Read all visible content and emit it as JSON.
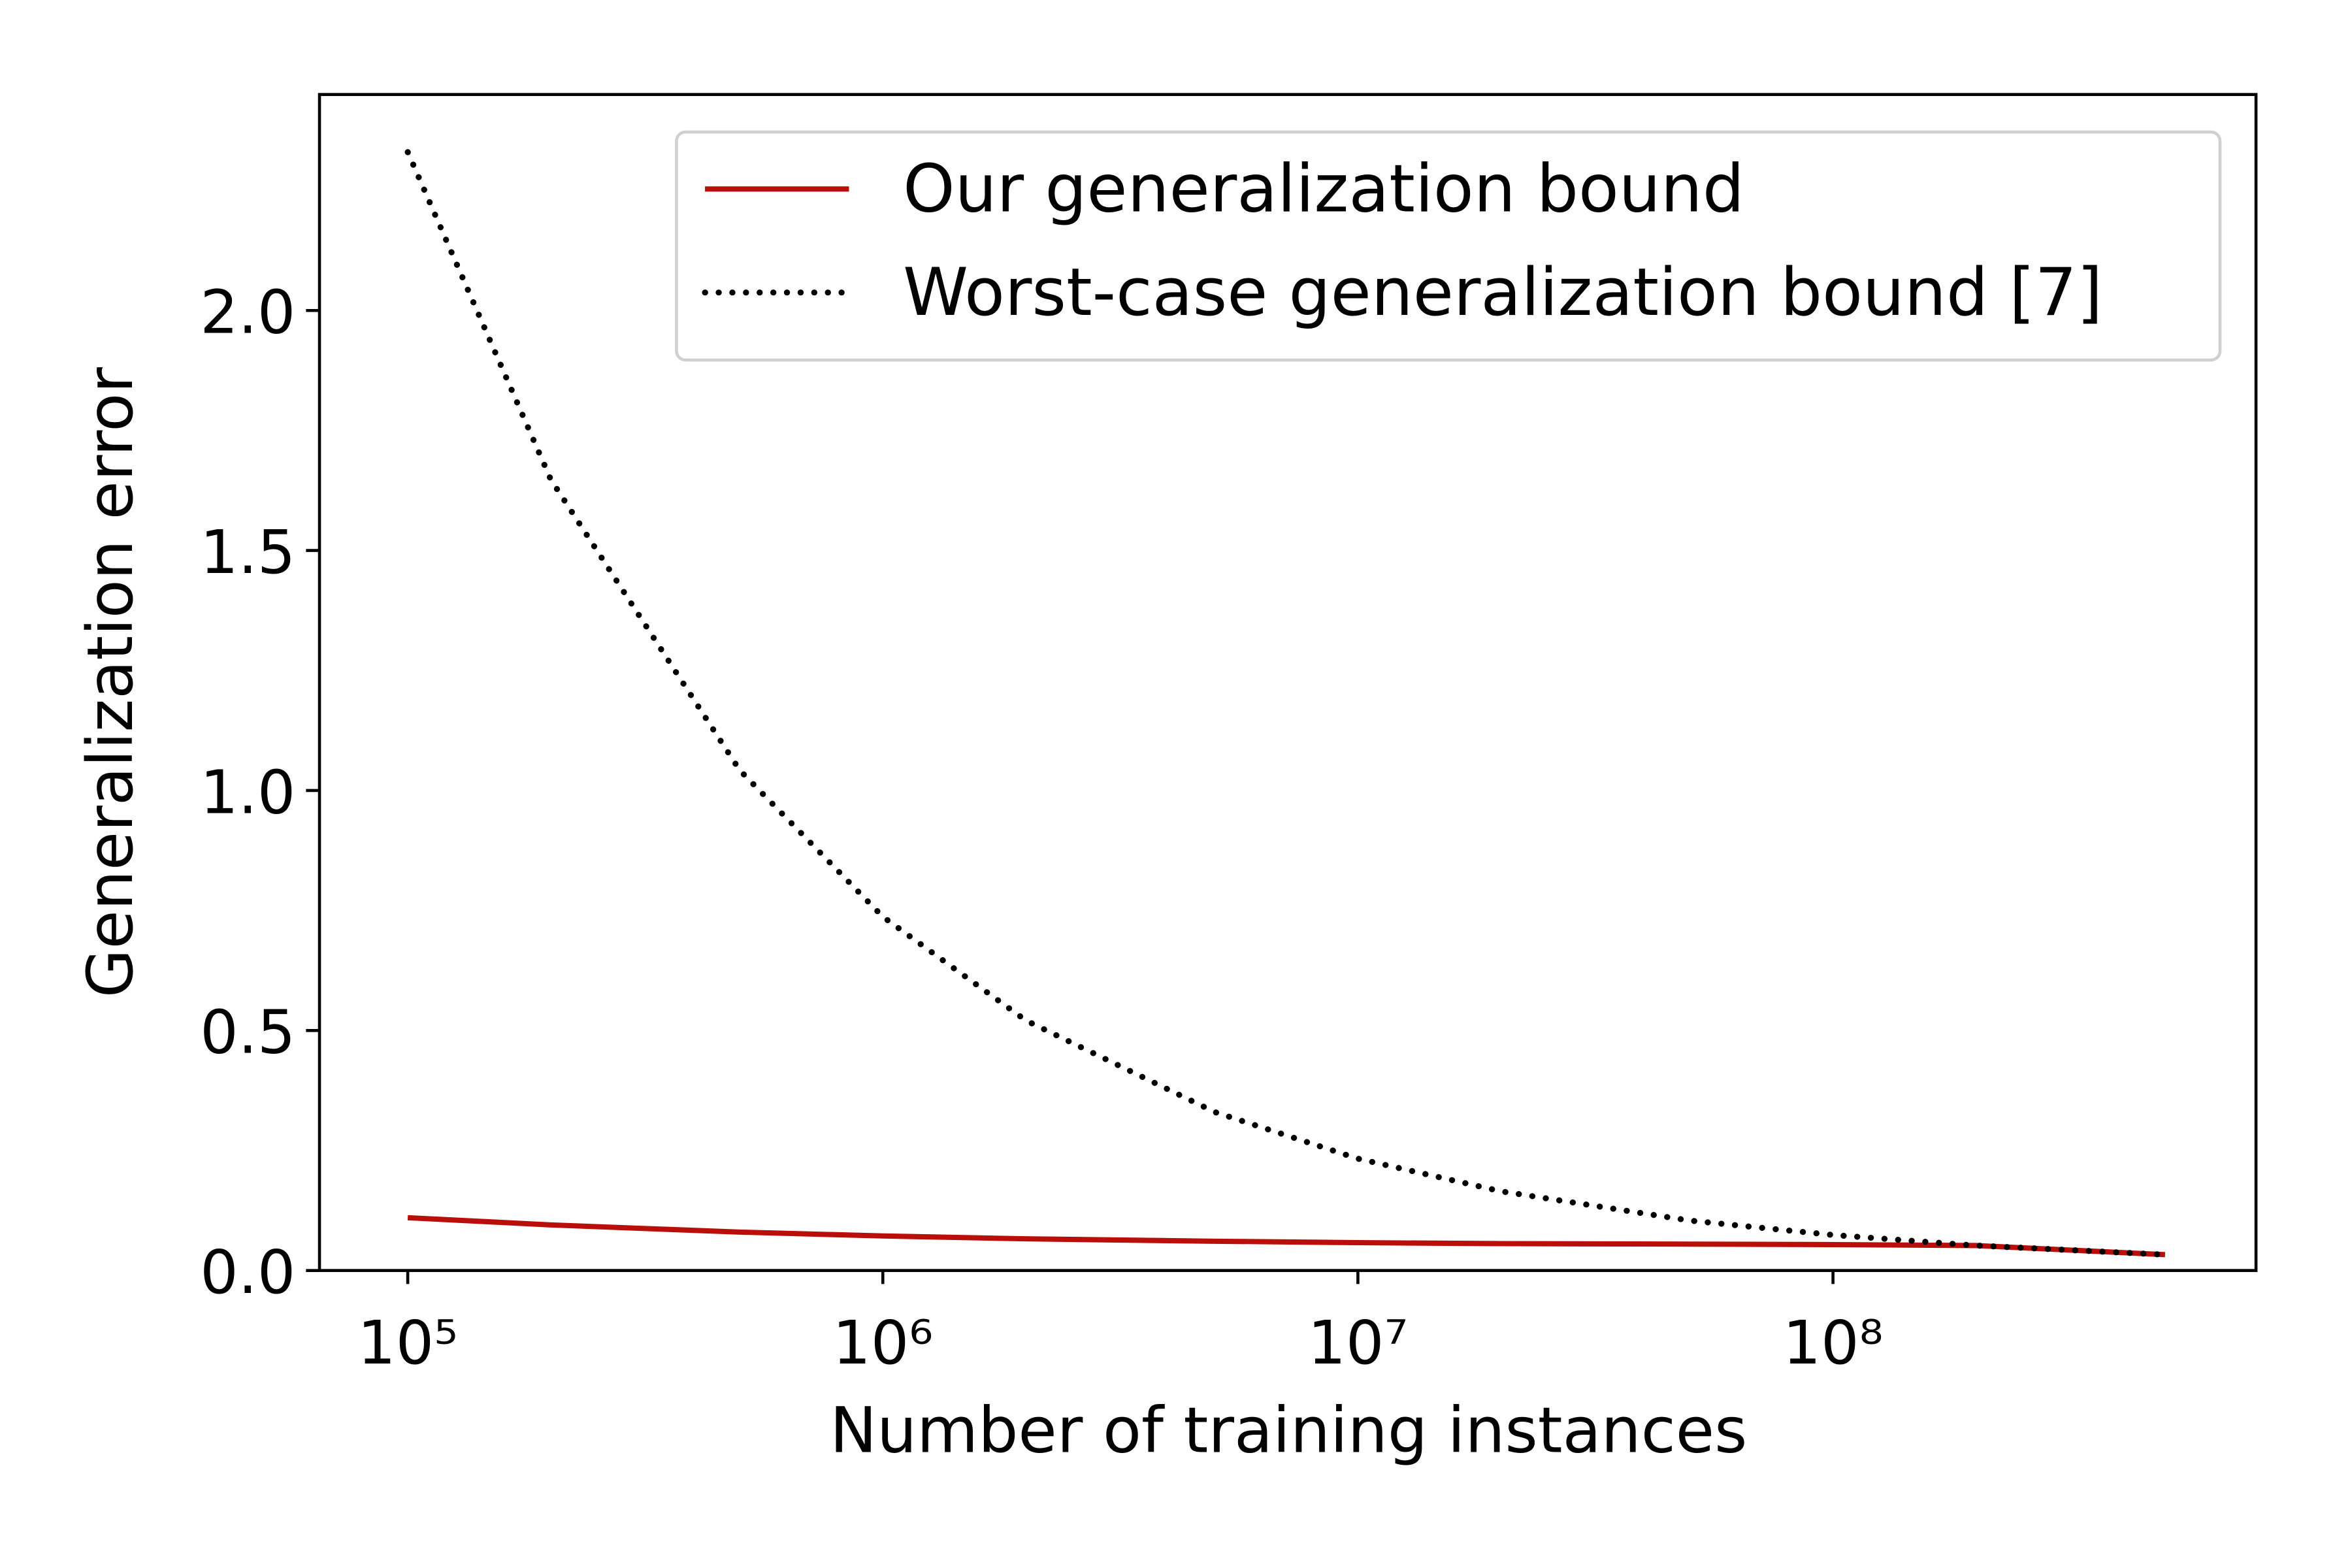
{
  "chart_data": {
    "type": "line",
    "xlabel": "Number of training instances",
    "ylabel": "Generalization error",
    "xscale": "log",
    "xlim": [
      65200,
      777000000
    ],
    "ylim": [
      0,
      2.45
    ],
    "xticks": [
      {
        "value": 100000,
        "label": "10⁵"
      },
      {
        "value": 1000000,
        "label": "10⁶"
      },
      {
        "value": 10000000,
        "label": "10⁷"
      },
      {
        "value": 100000000,
        "label": "10⁸"
      }
    ],
    "yticks": [
      {
        "value": 0,
        "label": "0.0"
      },
      0.5,
      {
        "value": 1,
        "label": "1.0"
      },
      1.5,
      {
        "value": 2,
        "label": "2.0"
      }
    ],
    "legend": "upper right",
    "x": [
      100000,
      200000,
      500000,
      1000000,
      2000000,
      5000000,
      10000000,
      20000000,
      50000000,
      100000000,
      200000000,
      500000000
    ],
    "series": [
      {
        "name": "Our generalization bound",
        "color": "#b90e0a",
        "style": "solid",
        "values": [
          0.11,
          0.095,
          0.08,
          0.072,
          0.066,
          0.061,
          0.058,
          0.056,
          0.055,
          0.054,
          0.052,
          0.033
        ]
      },
      {
        "name": "Worst-case generalization bound [7]",
        "color": "#000000",
        "style": "dotted",
        "values": [
          2.33,
          1.648,
          1.042,
          0.737,
          0.521,
          0.33,
          0.233,
          0.165,
          0.104,
          0.074,
          0.052,
          0.033
        ]
      }
    ]
  }
}
